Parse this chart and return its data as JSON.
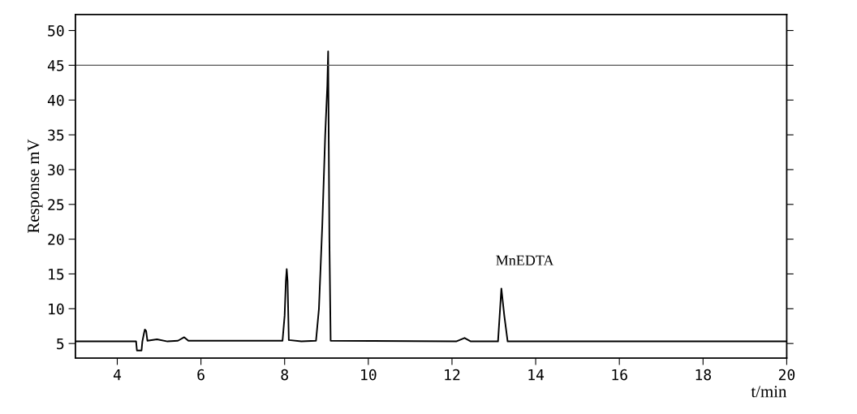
{
  "chart_data": {
    "type": "line",
    "xlabel": "t/min",
    "ylabel": "Response mV",
    "series": [
      {
        "color": "#000000",
        "x": [
          3.0,
          4.45,
          4.47,
          4.58,
          4.6,
          4.64,
          4.66,
          4.69,
          4.72,
          4.95,
          5.2,
          5.45,
          5.6,
          5.7,
          7.95,
          8.0,
          8.03,
          8.05,
          8.07,
          8.1,
          8.4,
          8.75,
          8.82,
          8.9,
          8.97,
          9.02,
          9.04,
          9.07,
          9.1,
          12.1,
          12.3,
          12.45,
          13.1,
          13.18,
          13.25,
          13.33,
          20.0
        ],
        "values": [
          5.3,
          5.3,
          4.0,
          4.0,
          5.3,
          6.5,
          7.0,
          6.8,
          5.4,
          5.6,
          5.3,
          5.4,
          5.9,
          5.4,
          5.4,
          9,
          14,
          15.7,
          14,
          5.5,
          5.3,
          5.4,
          10,
          22,
          35,
          42,
          47.0,
          20,
          5.4,
          5.3,
          5.8,
          5.3,
          5.3,
          12.9,
          9,
          5.3,
          5.3
        ]
      }
    ],
    "xlim": [
      3.0,
      20.0
    ],
    "xticks": [
      4,
      6,
      8,
      10,
      12,
      14,
      16,
      18,
      20
    ],
    "ylim": [
      2.9,
      52.3
    ],
    "yticks": [
      5,
      10,
      15,
      20,
      25,
      30,
      35,
      40,
      45,
      50
    ],
    "ref_lines": [
      {
        "axis": "y",
        "value": 45,
        "color": "#555555"
      }
    ],
    "annotations": [
      {
        "text": "MnEDTA",
        "x": 13.2,
        "y": 12.9
      }
    ],
    "grid": false,
    "legend": false,
    "marker": "none",
    "line_style": "solid"
  }
}
